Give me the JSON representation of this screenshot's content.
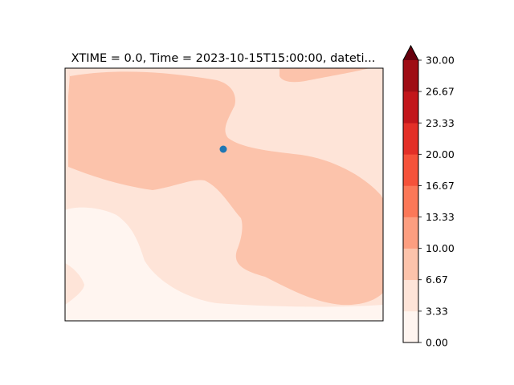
{
  "chart_data": {
    "type": "heatmap",
    "title": "XTIME = 0.0, Time = 2023-10-15T15:00:00, dateti...",
    "xlabel": "",
    "ylabel": "",
    "colorbar": {
      "levels": [
        0.0,
        3.33,
        6.67,
        10.0,
        13.33,
        16.67,
        20.0,
        23.33,
        26.67,
        30.0
      ],
      "tick_labels": [
        "0.00",
        "3.33",
        "6.67",
        "10.00",
        "13.33",
        "16.67",
        "20.00",
        "23.33",
        "26.67",
        "30.00"
      ],
      "colors": [
        "#fff5f0",
        "#fee4d8",
        "#fcc3ab",
        "#fc9e80",
        "#fb7858",
        "#f5523a",
        "#e32f27",
        "#c2161b",
        "#9f0d14"
      ],
      "extend": "max",
      "extend_color": "#67000d",
      "orientation": "vertical",
      "placement": "right"
    },
    "regions": [
      {
        "name": "level-0-3.33",
        "value_range": [
          0.0,
          3.33
        ],
        "extent": "lower-left and bottom"
      },
      {
        "name": "level-3.33-6.67",
        "value_range": [
          3.33,
          6.67
        ],
        "extent": "background band"
      },
      {
        "name": "level-6.67-10",
        "value_range": [
          6.67,
          10.0
        ],
        "extent": "upper-left to center-right"
      }
    ],
    "marker": {
      "label": "point",
      "color": "#1f77b4"
    }
  }
}
